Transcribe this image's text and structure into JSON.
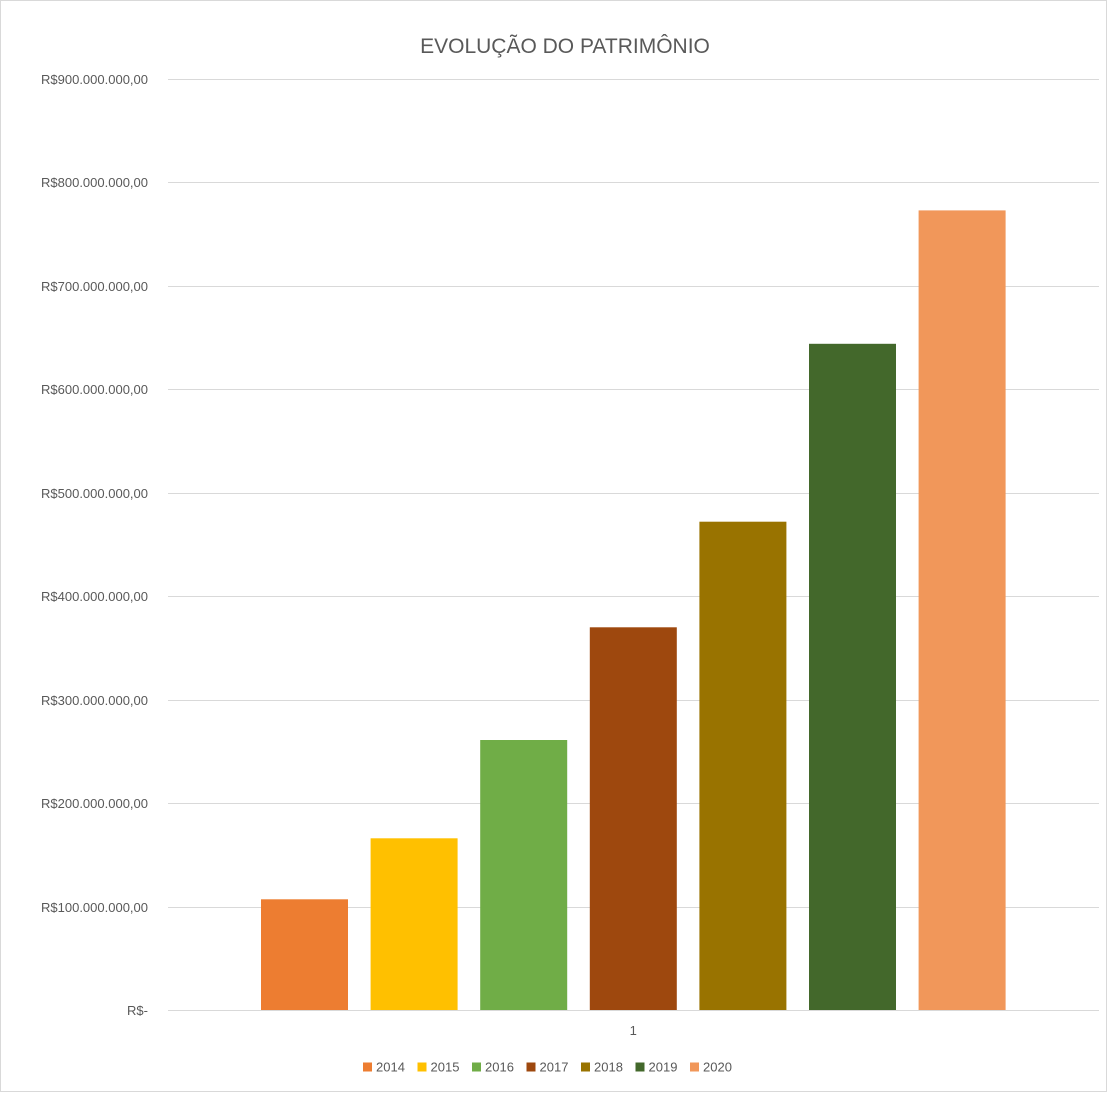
{
  "chart_data": {
    "type": "bar",
    "title": "EVOLUÇÃO DO PATRIMÔNIO",
    "xlabel": "",
    "ylabel": "",
    "categories": [
      "1"
    ],
    "series": [
      {
        "name": "2014",
        "values": [
          107000000
        ],
        "color": "#ED7D31"
      },
      {
        "name": "2015",
        "values": [
          166000000
        ],
        "color": "#FFC000"
      },
      {
        "name": "2016",
        "values": [
          261000000
        ],
        "color": "#70AD47"
      },
      {
        "name": "2017",
        "values": [
          370000000
        ],
        "color": "#9E480E"
      },
      {
        "name": "2018",
        "values": [
          472000000
        ],
        "color": "#997300"
      },
      {
        "name": "2019",
        "values": [
          644000000
        ],
        "color": "#43682B"
      },
      {
        "name": "2020",
        "values": [
          773000000
        ],
        "color": "#F1975A"
      }
    ],
    "ylim": [
      0,
      900000000
    ],
    "y_ticks": [
      {
        "value": 0,
        "label": "R$-"
      },
      {
        "value": 100000000,
        "label": "R$100.000.000,00"
      },
      {
        "value": 200000000,
        "label": "R$200.000.000,00"
      },
      {
        "value": 300000000,
        "label": "R$300.000.000,00"
      },
      {
        "value": 400000000,
        "label": "R$400.000.000,00"
      },
      {
        "value": 500000000,
        "label": "R$500.000.000,00"
      },
      {
        "value": 600000000,
        "label": "R$600.000.000,00"
      },
      {
        "value": 700000000,
        "label": "R$700.000.000,00"
      },
      {
        "value": 800000000,
        "label": "R$800.000.000,00"
      },
      {
        "value": 900000000,
        "label": "R$900.000.000,00"
      }
    ],
    "grid": true,
    "legend_position": "bottom"
  }
}
